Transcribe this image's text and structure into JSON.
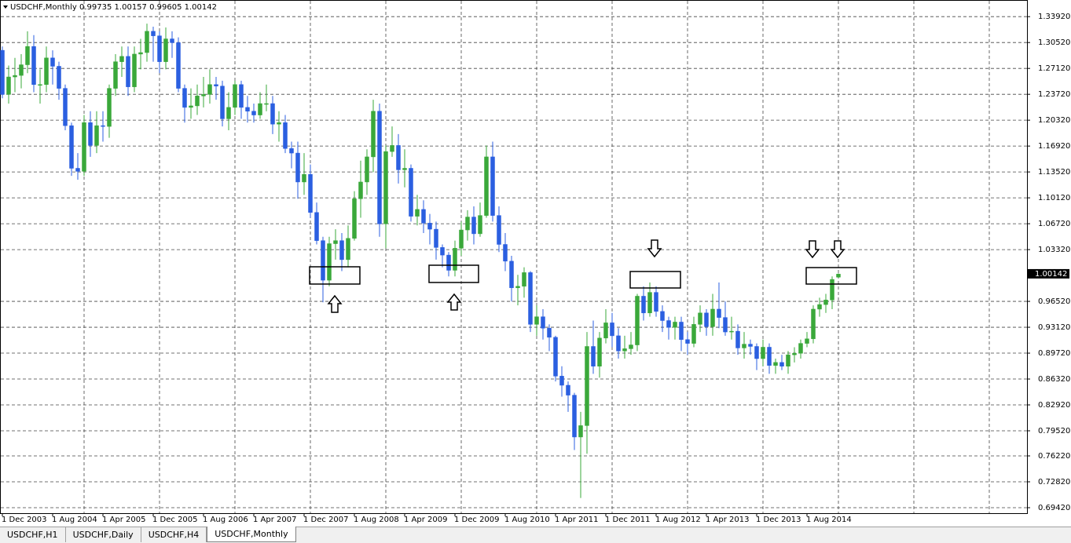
{
  "chart_data": {
    "type": "candlestick",
    "title": "USDCHF,Monthly  0.99735 1.00157 0.99605 1.00142",
    "up_color": "#3aa83a",
    "down_color": "#2b5fe0",
    "grid": true,
    "ylim": [
      0.688,
      1.359
    ],
    "yticks": [
      {
        "value": 1.3392,
        "label": "1.33920"
      },
      {
        "value": 1.3052,
        "label": "1.30520"
      },
      {
        "value": 1.2712,
        "label": "1.27120"
      },
      {
        "value": 1.2372,
        "label": "1.23720"
      },
      {
        "value": 1.2032,
        "label": "1.20320"
      },
      {
        "value": 1.1692,
        "label": "1.16920"
      },
      {
        "value": 1.1352,
        "label": "1.13520"
      },
      {
        "value": 1.1012,
        "label": "1.10120"
      },
      {
        "value": 1.0672,
        "label": "1.06720"
      },
      {
        "value": 1.0332,
        "label": "1.03320"
      },
      {
        "value": 0.9652,
        "label": "0.96520"
      },
      {
        "value": 0.9312,
        "label": "0.93120"
      },
      {
        "value": 0.8972,
        "label": "0.89720"
      },
      {
        "value": 0.8632,
        "label": "0.86320"
      },
      {
        "value": 0.8292,
        "label": "0.82920"
      },
      {
        "value": 0.7952,
        "label": "0.79520"
      },
      {
        "value": 0.7622,
        "label": "0.76220"
      },
      {
        "value": 0.7282,
        "label": "0.72820"
      },
      {
        "value": 0.6942,
        "label": "0.69420"
      }
    ],
    "current_price": 1.00142,
    "categories": [
      "1 Dec 2003",
      null,
      null,
      null,
      null,
      null,
      null,
      null,
      "1 Aug 2004",
      null,
      null,
      null,
      null,
      null,
      null,
      null,
      "1 Apr 2005",
      null,
      null,
      null,
      null,
      null,
      null,
      null,
      "1 Dec 2005",
      null,
      null,
      null,
      null,
      null,
      null,
      null,
      "1 Aug 2006",
      null,
      null,
      null,
      null,
      null,
      null,
      null,
      "1 Apr 2007",
      null,
      null,
      null,
      null,
      null,
      null,
      null,
      "1 Dec 2007",
      null,
      null,
      null,
      null,
      null,
      null,
      null,
      "1 Aug 2008",
      null,
      null,
      null,
      null,
      null,
      null,
      null,
      "1 Apr 2009",
      null,
      null,
      null,
      null,
      null,
      null,
      null,
      "1 Dec 2009",
      null,
      null,
      null,
      null,
      null,
      null,
      null,
      "1 Aug 2010",
      null,
      null,
      null,
      null,
      null,
      null,
      null,
      "1 Apr 2011",
      null,
      null,
      null,
      null,
      null,
      null,
      null,
      "1 Dec 2011",
      null,
      null,
      null,
      null,
      null,
      null,
      null,
      "1 Aug 2012",
      null,
      null,
      null,
      null,
      null,
      null,
      null,
      "1 Apr 2013",
      null,
      null,
      null,
      null,
      null,
      null,
      null,
      "1 Dec 2013",
      null,
      null,
      null,
      null,
      null,
      null,
      null,
      "1 Aug 2014",
      null,
      null,
      null,
      null,
      null
    ],
    "open": [
      1.295,
      1.237,
      1.26,
      1.262,
      1.276,
      1.3,
      1.25,
      1.25,
      1.285,
      1.274,
      1.245,
      1.196,
      1.14,
      1.136,
      1.2,
      1.17,
      1.196,
      1.195,
      1.245,
      1.28,
      1.287,
      1.247,
      1.29,
      1.292,
      1.32,
      1.314,
      1.28,
      1.31,
      1.305,
      1.245,
      1.22,
      1.222,
      1.235,
      1.237,
      1.25,
      1.248,
      1.205,
      1.22,
      1.25,
      1.22,
      1.215,
      1.21,
      1.225,
      1.225,
      1.198,
      1.2,
      1.166,
      1.16,
      1.122,
      1.132,
      1.082,
      1.045,
      0.993,
      1.041,
      1.045,
      1.02,
      1.048,
      1.1,
      1.122,
      1.155,
      1.215,
      1.067,
      1.162,
      1.17,
      1.138,
      1.14,
      1.077,
      1.086,
      1.068,
      1.06,
      1.036,
      1.026,
      1.006,
      1.035,
      1.059,
      1.076,
      1.054,
      1.078,
      1.155,
      1.078,
      1.04,
      1.018,
      0.983,
      0.985,
      1.003,
      0.935,
      0.945,
      0.93,
      0.918,
      0.867,
      0.855,
      0.842,
      0.787,
      0.802,
      0.906,
      0.88,
      0.917,
      0.937,
      0.92,
      0.9,
      0.903,
      0.908,
      0.972,
      0.95,
      0.977,
      0.952,
      0.94,
      0.931,
      0.938,
      0.915,
      0.91,
      0.935,
      0.95,
      0.932,
      0.955,
      0.944,
      0.925,
      0.926,
      0.904,
      0.909,
      0.906,
      0.89,
      0.905,
      0.881,
      0.885,
      0.88,
      0.895,
      0.897,
      0.91,
      0.916,
      0.955,
      0.961,
      0.967,
      0.997
    ],
    "high": [
      1.3,
      1.275,
      1.285,
      1.29,
      1.32,
      1.315,
      1.27,
      1.3,
      1.295,
      1.28,
      1.25,
      1.2,
      1.16,
      1.21,
      1.215,
      1.215,
      1.215,
      1.25,
      1.29,
      1.3,
      1.3,
      1.3,
      1.31,
      1.33,
      1.326,
      1.32,
      1.325,
      1.32,
      1.312,
      1.25,
      1.245,
      1.25,
      1.26,
      1.27,
      1.26,
      1.255,
      1.24,
      1.255,
      1.255,
      1.235,
      1.225,
      1.24,
      1.25,
      1.235,
      1.215,
      1.21,
      1.175,
      1.175,
      1.16,
      1.145,
      1.095,
      1.05,
      1.05,
      1.06,
      1.055,
      1.065,
      1.11,
      1.15,
      1.165,
      1.23,
      1.225,
      1.17,
      1.195,
      1.185,
      1.165,
      1.145,
      1.105,
      1.098,
      1.08,
      1.07,
      1.04,
      1.03,
      1.045,
      1.07,
      1.085,
      1.09,
      1.095,
      1.17,
      1.175,
      1.09,
      1.055,
      1.025,
      1.0,
      1.01,
      1.005,
      0.96,
      0.955,
      0.935,
      0.92,
      0.88,
      0.86,
      0.845,
      0.82,
      0.925,
      0.94,
      0.925,
      0.955,
      0.95,
      0.93,
      0.92,
      0.925,
      0.975,
      0.985,
      0.99,
      0.985,
      0.96,
      0.945,
      0.945,
      0.945,
      0.925,
      0.945,
      0.96,
      0.955,
      0.975,
      0.99,
      0.965,
      0.945,
      0.935,
      0.925,
      0.915,
      0.91,
      0.915,
      0.91,
      0.89,
      0.895,
      0.9,
      0.905,
      0.915,
      0.925,
      0.96,
      0.97,
      0.975,
      0.998,
      1.002
    ],
    "low": [
      1.232,
      1.225,
      1.24,
      1.245,
      1.265,
      1.24,
      1.225,
      1.24,
      1.25,
      1.23,
      1.19,
      1.13,
      1.125,
      1.13,
      1.155,
      1.16,
      1.175,
      1.18,
      1.235,
      1.26,
      1.235,
      1.24,
      1.27,
      1.28,
      1.28,
      1.265,
      1.27,
      1.285,
      1.24,
      1.2,
      1.205,
      1.21,
      1.22,
      1.225,
      1.23,
      1.195,
      1.19,
      1.21,
      1.205,
      1.2,
      1.2,
      1.205,
      1.215,
      1.185,
      1.175,
      1.16,
      1.14,
      1.1,
      1.105,
      1.075,
      1.04,
      0.964,
      0.985,
      1.02,
      1.005,
      1.01,
      1.045,
      1.075,
      1.105,
      1.135,
      1.05,
      1.035,
      1.155,
      1.12,
      1.115,
      1.07,
      1.065,
      1.055,
      1.04,
      1.02,
      1.01,
      0.998,
      0.998,
      1.025,
      1.045,
      1.04,
      1.05,
      1.075,
      1.07,
      1.03,
      1.005,
      0.965,
      0.96,
      0.97,
      0.925,
      0.92,
      0.915,
      0.9,
      0.86,
      0.84,
      0.82,
      0.77,
      0.707,
      0.765,
      0.87,
      0.865,
      0.91,
      0.905,
      0.89,
      0.89,
      0.895,
      0.9,
      0.94,
      0.945,
      0.945,
      0.925,
      0.915,
      0.915,
      0.9,
      0.895,
      0.905,
      0.925,
      0.92,
      0.92,
      0.93,
      0.92,
      0.915,
      0.895,
      0.89,
      0.895,
      0.875,
      0.88,
      0.87,
      0.87,
      0.875,
      0.87,
      0.885,
      0.89,
      0.905,
      0.91,
      0.945,
      0.95,
      0.955,
      0.996
    ],
    "close": [
      1.237,
      1.26,
      1.262,
      1.276,
      1.3,
      1.25,
      1.25,
      1.285,
      1.274,
      1.245,
      1.196,
      1.14,
      1.136,
      1.2,
      1.17,
      1.196,
      1.195,
      1.245,
      1.28,
      1.287,
      1.247,
      1.29,
      1.292,
      1.32,
      1.314,
      1.28,
      1.31,
      1.305,
      1.245,
      1.22,
      1.222,
      1.235,
      1.237,
      1.25,
      1.248,
      1.205,
      1.22,
      1.25,
      1.22,
      1.215,
      1.21,
      1.225,
      1.225,
      1.198,
      1.2,
      1.166,
      1.16,
      1.122,
      1.132,
      1.082,
      1.045,
      0.993,
      1.041,
      1.045,
      1.02,
      1.048,
      1.1,
      1.122,
      1.155,
      1.215,
      1.067,
      1.162,
      1.17,
      1.138,
      1.14,
      1.077,
      1.086,
      1.068,
      1.06,
      1.036,
      1.026,
      1.006,
      1.035,
      1.059,
      1.076,
      1.054,
      1.078,
      1.155,
      1.078,
      1.04,
      1.018,
      0.983,
      0.985,
      1.003,
      0.935,
      0.945,
      0.93,
      0.918,
      0.867,
      0.855,
      0.842,
      0.787,
      0.802,
      0.906,
      0.88,
      0.917,
      0.937,
      0.92,
      0.9,
      0.903,
      0.908,
      0.972,
      0.95,
      0.977,
      0.952,
      0.94,
      0.931,
      0.938,
      0.915,
      0.91,
      0.935,
      0.95,
      0.932,
      0.955,
      0.944,
      0.925,
      0.926,
      0.904,
      0.909,
      0.906,
      0.89,
      0.905,
      0.881,
      0.885,
      0.88,
      0.895,
      0.897,
      0.91,
      0.916,
      0.955,
      0.961,
      0.967,
      0.994,
      1.001
    ]
  },
  "tabs": [
    "USDCHF,H1",
    "USDCHF,Daily",
    "USDCHF,H4",
    "USDCHF,Monthly"
  ],
  "active_tab": 3
}
